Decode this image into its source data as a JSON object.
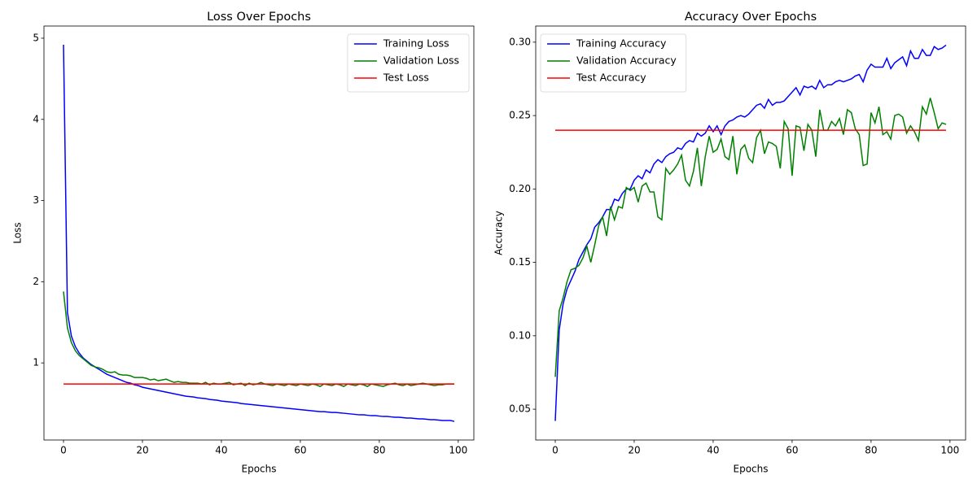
{
  "chart_data": [
    {
      "type": "line",
      "title": "Loss Over Epochs",
      "xlabel": "Epochs",
      "ylabel": "Loss",
      "x": [
        0,
        1,
        2,
        3,
        4,
        5,
        6,
        7,
        8,
        9,
        10,
        11,
        12,
        13,
        14,
        15,
        16,
        17,
        18,
        19,
        20,
        21,
        22,
        23,
        24,
        25,
        26,
        27,
        28,
        29,
        30,
        31,
        32,
        33,
        34,
        35,
        36,
        37,
        38,
        39,
        40,
        41,
        42,
        43,
        44,
        45,
        46,
        47,
        48,
        49,
        50,
        51,
        52,
        53,
        54,
        55,
        56,
        57,
        58,
        59,
        60,
        61,
        62,
        63,
        64,
        65,
        66,
        67,
        68,
        69,
        70,
        71,
        72,
        73,
        74,
        75,
        76,
        77,
        78,
        79,
        80,
        81,
        82,
        83,
        84,
        85,
        86,
        87,
        88,
        89,
        90,
        91,
        92,
        93,
        94,
        95,
        96,
        97,
        98,
        99
      ],
      "series": [
        {
          "name": "Training Loss",
          "color": "#0000ff",
          "values": [
            4.92,
            1.62,
            1.33,
            1.2,
            1.12,
            1.06,
            1.02,
            0.98,
            0.95,
            0.92,
            0.89,
            0.86,
            0.84,
            0.82,
            0.8,
            0.78,
            0.76,
            0.75,
            0.73,
            0.72,
            0.7,
            0.69,
            0.68,
            0.67,
            0.66,
            0.65,
            0.64,
            0.63,
            0.62,
            0.61,
            0.6,
            0.59,
            0.585,
            0.58,
            0.57,
            0.565,
            0.56,
            0.55,
            0.545,
            0.54,
            0.53,
            0.525,
            0.52,
            0.515,
            0.51,
            0.5,
            0.495,
            0.49,
            0.485,
            0.48,
            0.475,
            0.47,
            0.465,
            0.46,
            0.455,
            0.45,
            0.445,
            0.44,
            0.435,
            0.43,
            0.425,
            0.42,
            0.415,
            0.41,
            0.405,
            0.4,
            0.4,
            0.395,
            0.39,
            0.39,
            0.385,
            0.38,
            0.375,
            0.37,
            0.365,
            0.36,
            0.36,
            0.355,
            0.35,
            0.35,
            0.345,
            0.34,
            0.34,
            0.335,
            0.33,
            0.33,
            0.325,
            0.32,
            0.32,
            0.315,
            0.31,
            0.31,
            0.305,
            0.3,
            0.3,
            0.295,
            0.29,
            0.29,
            0.29,
            0.28
          ]
        },
        {
          "name": "Validation Loss",
          "color": "#008000",
          "values": [
            1.88,
            1.43,
            1.25,
            1.15,
            1.09,
            1.05,
            1.01,
            0.97,
            0.95,
            0.94,
            0.92,
            0.89,
            0.88,
            0.89,
            0.86,
            0.85,
            0.85,
            0.84,
            0.82,
            0.82,
            0.82,
            0.81,
            0.79,
            0.8,
            0.78,
            0.79,
            0.8,
            0.78,
            0.76,
            0.77,
            0.76,
            0.76,
            0.75,
            0.75,
            0.75,
            0.74,
            0.76,
            0.73,
            0.75,
            0.74,
            0.74,
            0.75,
            0.76,
            0.73,
            0.74,
            0.75,
            0.72,
            0.75,
            0.73,
            0.74,
            0.76,
            0.74,
            0.73,
            0.72,
            0.74,
            0.73,
            0.72,
            0.74,
            0.73,
            0.72,
            0.74,
            0.73,
            0.72,
            0.74,
            0.73,
            0.71,
            0.74,
            0.73,
            0.72,
            0.74,
            0.73,
            0.71,
            0.74,
            0.73,
            0.72,
            0.74,
            0.73,
            0.71,
            0.74,
            0.73,
            0.72,
            0.71,
            0.73,
            0.74,
            0.75,
            0.73,
            0.72,
            0.74,
            0.72,
            0.73,
            0.74,
            0.75,
            0.74,
            0.73,
            0.72,
            0.73,
            0.73,
            0.74,
            0.74,
            0.74
          ]
        },
        {
          "name": "Test Loss",
          "color": "#ff0000",
          "x": [
            0,
            99
          ],
          "values": [
            0.74,
            0.74
          ]
        }
      ],
      "xlim": [
        -4.95,
        103.95
      ],
      "xticks": [
        0,
        20,
        40,
        60,
        80,
        100
      ],
      "ylim": [
        0.05,
        5.15
      ],
      "yticks": [
        1,
        2,
        3,
        4,
        5
      ],
      "legend": "upper right"
    },
    {
      "type": "line",
      "title": "Accuracy Over Epochs",
      "xlabel": "Epochs",
      "ylabel": "Accuracy",
      "x": [
        0,
        1,
        2,
        3,
        4,
        5,
        6,
        7,
        8,
        9,
        10,
        11,
        12,
        13,
        14,
        15,
        16,
        17,
        18,
        19,
        20,
        21,
        22,
        23,
        24,
        25,
        26,
        27,
        28,
        29,
        30,
        31,
        32,
        33,
        34,
        35,
        36,
        37,
        38,
        39,
        40,
        41,
        42,
        43,
        44,
        45,
        46,
        47,
        48,
        49,
        50,
        51,
        52,
        53,
        54,
        55,
        56,
        57,
        58,
        59,
        60,
        61,
        62,
        63,
        64,
        65,
        66,
        67,
        68,
        69,
        70,
        71,
        72,
        73,
        74,
        75,
        76,
        77,
        78,
        79,
        80,
        81,
        82,
        83,
        84,
        85,
        86,
        87,
        88,
        89,
        90,
        91,
        92,
        93,
        94,
        95,
        96,
        97,
        98,
        99
      ],
      "series": [
        {
          "name": "Training Accuracy",
          "color": "#0000ff",
          "values": [
            0.042,
            0.104,
            0.122,
            0.132,
            0.138,
            0.144,
            0.152,
            0.157,
            0.162,
            0.166,
            0.174,
            0.177,
            0.181,
            0.186,
            0.186,
            0.193,
            0.192,
            0.197,
            0.2,
            0.2,
            0.206,
            0.209,
            0.207,
            0.213,
            0.211,
            0.217,
            0.22,
            0.218,
            0.222,
            0.224,
            0.225,
            0.228,
            0.227,
            0.231,
            0.233,
            0.232,
            0.238,
            0.236,
            0.238,
            0.243,
            0.239,
            0.243,
            0.237,
            0.243,
            0.246,
            0.247,
            0.249,
            0.25,
            0.249,
            0.251,
            0.254,
            0.257,
            0.258,
            0.255,
            0.261,
            0.257,
            0.259,
            0.259,
            0.26,
            0.263,
            0.266,
            0.269,
            0.264,
            0.27,
            0.269,
            0.27,
            0.268,
            0.274,
            0.269,
            0.271,
            0.271,
            0.273,
            0.274,
            0.273,
            0.274,
            0.275,
            0.277,
            0.278,
            0.273,
            0.281,
            0.285,
            0.283,
            0.283,
            0.283,
            0.289,
            0.282,
            0.286,
            0.288,
            0.29,
            0.284,
            0.294,
            0.289,
            0.289,
            0.295,
            0.291,
            0.291,
            0.297,
            0.295,
            0.296,
            0.298
          ]
        },
        {
          "name": "Validation Accuracy",
          "color": "#008000",
          "values": [
            0.072,
            0.117,
            0.126,
            0.137,
            0.145,
            0.146,
            0.148,
            0.153,
            0.161,
            0.15,
            0.162,
            0.175,
            0.181,
            0.168,
            0.188,
            0.179,
            0.188,
            0.187,
            0.201,
            0.199,
            0.201,
            0.191,
            0.202,
            0.204,
            0.198,
            0.198,
            0.181,
            0.179,
            0.214,
            0.21,
            0.213,
            0.217,
            0.223,
            0.206,
            0.202,
            0.212,
            0.228,
            0.202,
            0.222,
            0.236,
            0.225,
            0.227,
            0.234,
            0.222,
            0.22,
            0.236,
            0.21,
            0.227,
            0.23,
            0.221,
            0.218,
            0.235,
            0.24,
            0.224,
            0.232,
            0.231,
            0.229,
            0.214,
            0.246,
            0.241,
            0.209,
            0.243,
            0.242,
            0.226,
            0.244,
            0.24,
            0.222,
            0.254,
            0.24,
            0.24,
            0.246,
            0.243,
            0.248,
            0.237,
            0.254,
            0.252,
            0.241,
            0.237,
            0.216,
            0.217,
            0.252,
            0.245,
            0.256,
            0.237,
            0.239,
            0.234,
            0.25,
            0.251,
            0.249,
            0.238,
            0.243,
            0.239,
            0.233,
            0.256,
            0.251,
            0.262,
            0.252,
            0.241,
            0.245,
            0.244
          ]
        },
        {
          "name": "Test Accuracy",
          "color": "#ff0000",
          "x": [
            0,
            99
          ],
          "values": [
            0.24,
            0.24
          ]
        }
      ],
      "xlim": [
        -4.95,
        103.95
      ],
      "xticks": [
        0,
        20,
        40,
        60,
        80,
        100
      ],
      "ylim": [
        0.029,
        0.311
      ],
      "yticks": [
        {
          "value": 0.05,
          "label": "0.05"
        },
        {
          "value": 0.1,
          "label": "0.10"
        },
        {
          "value": 0.15,
          "label": "0.15"
        },
        {
          "value": 0.2,
          "label": "0.20"
        },
        {
          "value": 0.25,
          "label": "0.25"
        },
        {
          "value": 0.3,
          "label": "0.30"
        }
      ],
      "legend": "upper left"
    }
  ]
}
